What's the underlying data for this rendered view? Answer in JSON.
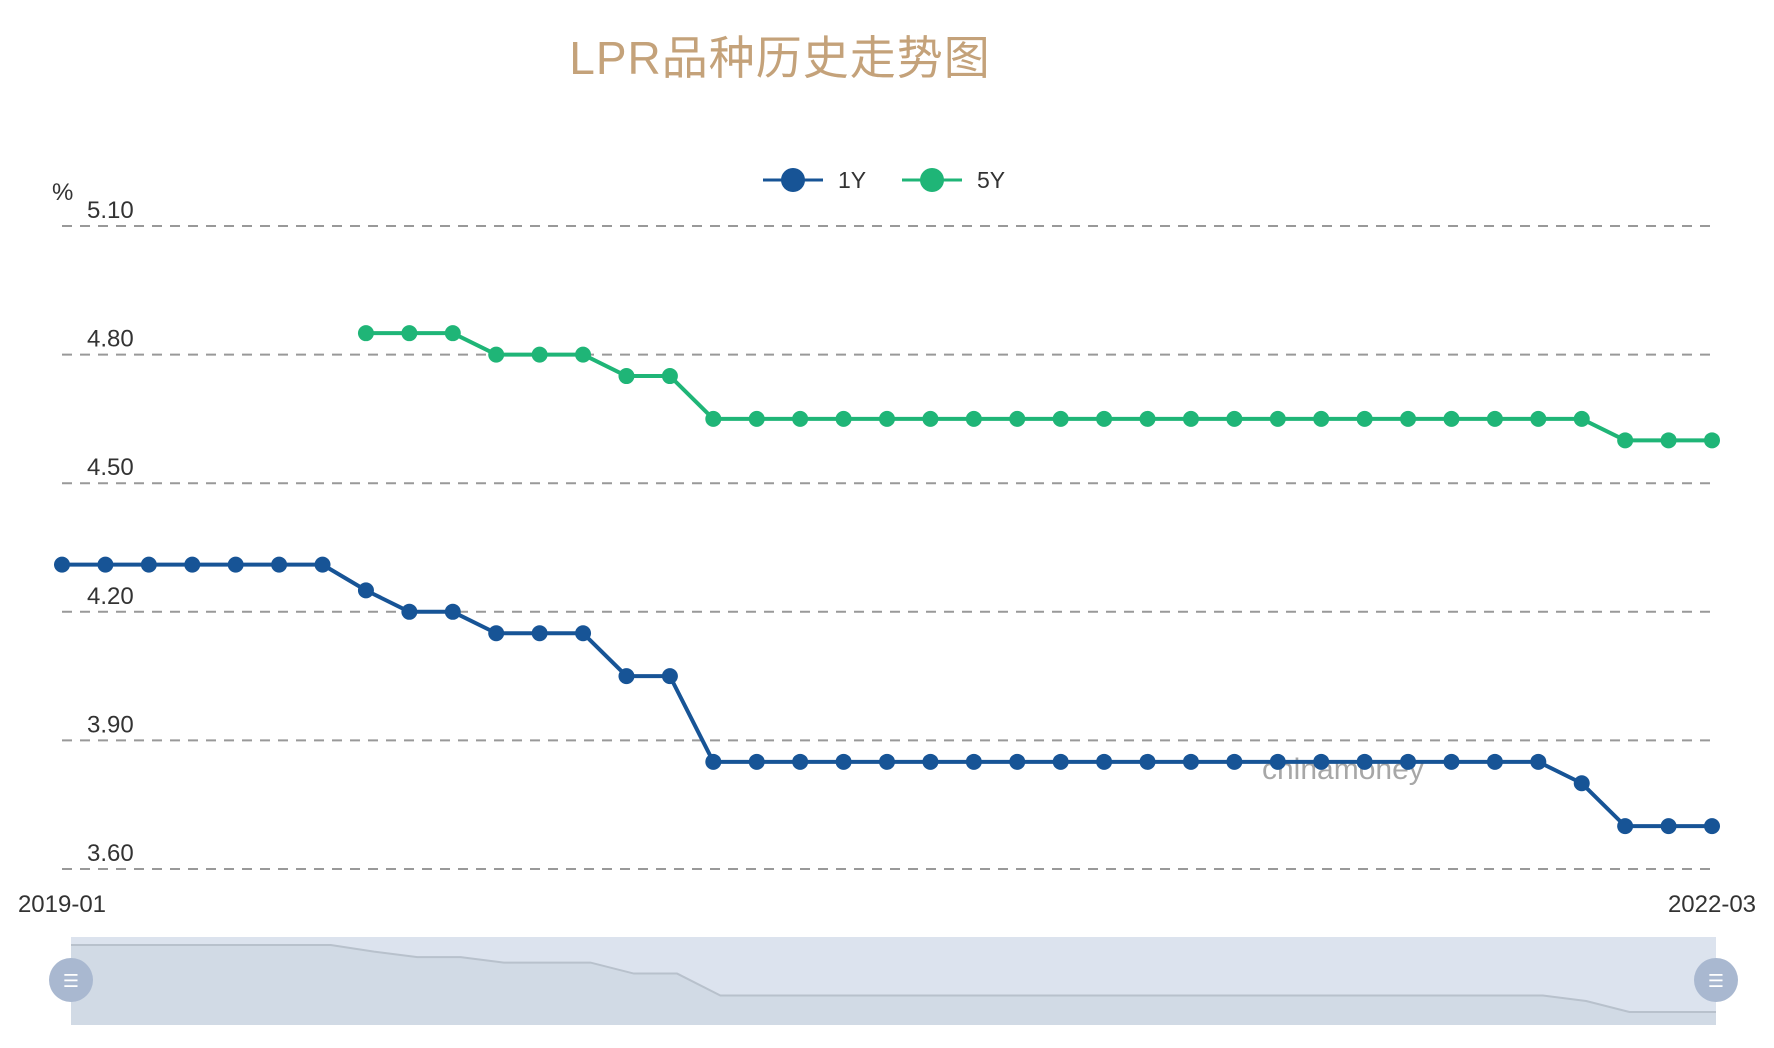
{
  "chart_data": {
    "type": "line",
    "title": "LPR品种历史走势图",
    "yunit": "%",
    "ylim": [
      3.6,
      5.1
    ],
    "yticks": [
      "3.60",
      "3.90",
      "4.20",
      "4.50",
      "4.80",
      "5.10"
    ],
    "x_start_label": "2019-01",
    "x_end_label": "2022-03",
    "grid": true,
    "legend_position": "top-center",
    "watermark": "chinamoney",
    "series": [
      {
        "name": "1Y",
        "color": "#175496",
        "values": [
          4.31,
          4.31,
          4.31,
          4.31,
          4.31,
          4.31,
          4.31,
          4.25,
          4.2,
          4.2,
          4.15,
          4.15,
          4.15,
          4.05,
          4.05,
          3.85,
          3.85,
          3.85,
          3.85,
          3.85,
          3.85,
          3.85,
          3.85,
          3.85,
          3.85,
          3.85,
          3.85,
          3.85,
          3.85,
          3.85,
          3.85,
          3.85,
          3.85,
          3.85,
          3.85,
          3.8,
          3.7,
          3.7,
          3.7
        ]
      },
      {
        "name": "5Y",
        "color": "#1fb577",
        "values": [
          null,
          null,
          null,
          null,
          null,
          null,
          null,
          4.85,
          4.85,
          4.85,
          4.8,
          4.8,
          4.8,
          4.75,
          4.75,
          4.65,
          4.65,
          4.65,
          4.65,
          4.65,
          4.65,
          4.65,
          4.65,
          4.65,
          4.65,
          4.65,
          4.65,
          4.65,
          4.65,
          4.65,
          4.65,
          4.65,
          4.65,
          4.65,
          4.65,
          4.65,
          4.6,
          4.6,
          4.6
        ]
      }
    ]
  },
  "colors": {
    "title": "#c4a27a",
    "slider_fill": "#dce3ee",
    "slider_line": "#b8c1cc",
    "slider_handle": "#a9b8d0"
  }
}
